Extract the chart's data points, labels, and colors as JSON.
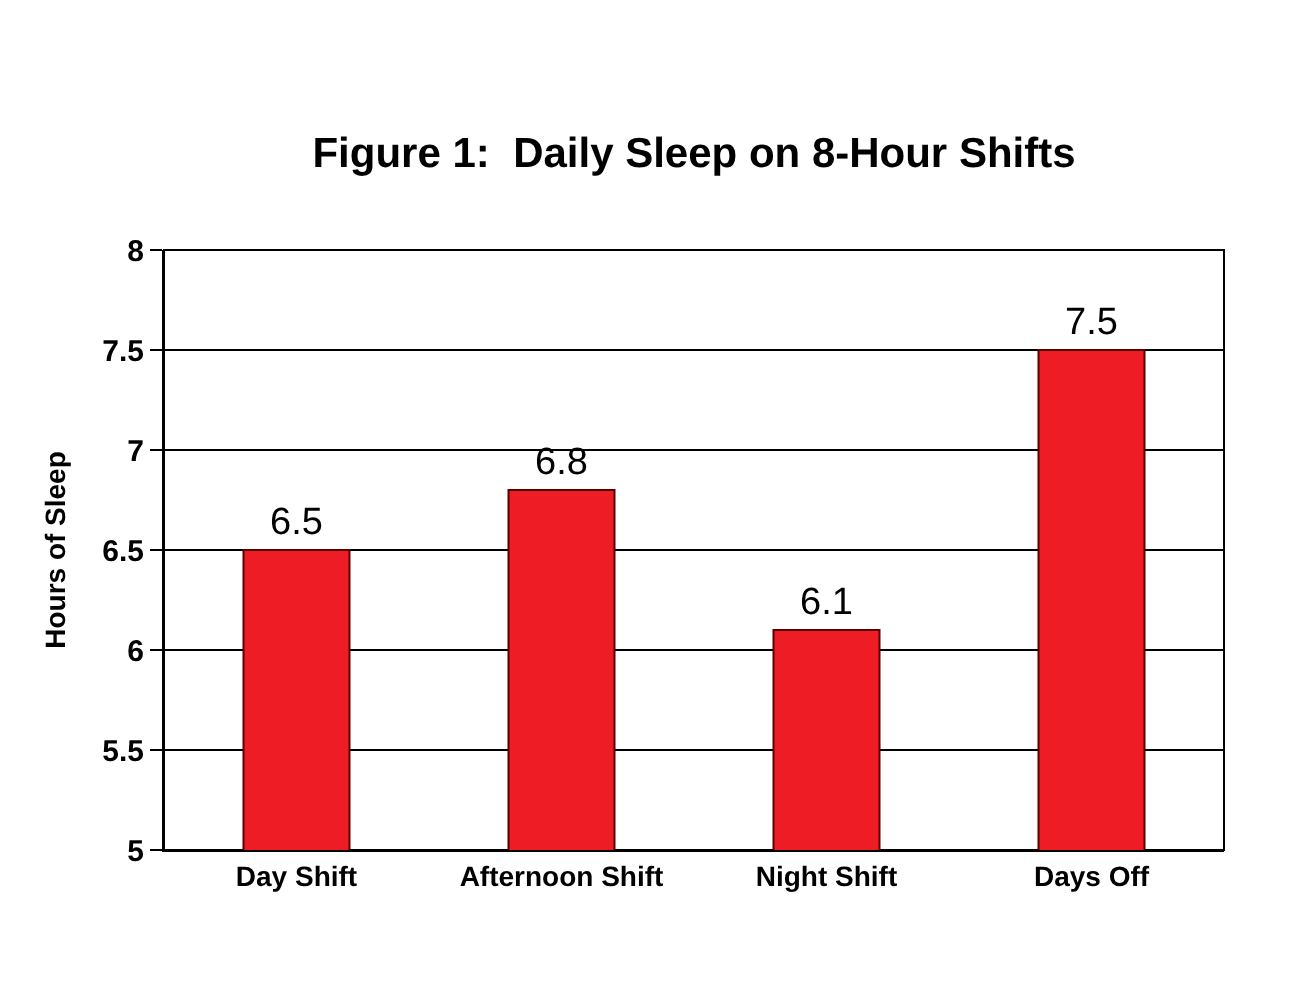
{
  "chart_data": {
    "type": "bar",
    "title": "Figure 1:  Daily Sleep on 8-Hour Shifts",
    "ylabel": "Hours of Sleep",
    "categories": [
      "Day Shift",
      "Afternoon Shift",
      "Night Shift",
      "Days Off"
    ],
    "values": [
      6.5,
      6.8,
      6.1,
      7.5
    ],
    "color": "#ee1c24",
    "ylim": [
      5,
      8
    ],
    "yticks": [
      5,
      5.5,
      6,
      6.5,
      7,
      7.5,
      8
    ],
    "grid": "y",
    "data_labels": true
  }
}
